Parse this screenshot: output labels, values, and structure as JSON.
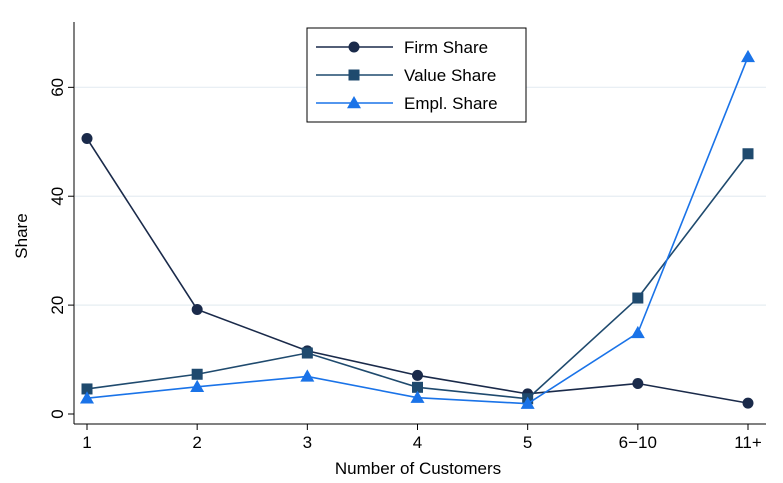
{
  "chart_data": {
    "type": "line",
    "xlabel": "Number of Customers",
    "ylabel": "Share",
    "categories": [
      "1",
      "2",
      "3",
      "4",
      "5",
      "6−10",
      "11+"
    ],
    "ylim": [
      0,
      72
    ],
    "yticks": [
      0,
      20,
      40,
      60
    ],
    "grid": "horizontal",
    "legend_position": "top-center",
    "series": [
      {
        "name": "Firm Share",
        "marker": "circle",
        "color": "#1a2a4a",
        "values": [
          50.6,
          19.2,
          11.6,
          7.1,
          3.7,
          5.6,
          2.0
        ]
      },
      {
        "name": "Value Share",
        "marker": "square",
        "color": "#1f4a6e",
        "values": [
          4.6,
          7.3,
          11.2,
          4.9,
          2.8,
          21.3,
          47.8
        ]
      },
      {
        "name": "Empl. Share",
        "marker": "triangle",
        "color": "#1a73e8",
        "values": [
          2.9,
          5.0,
          6.9,
          3.0,
          1.9,
          14.9,
          65.6
        ]
      }
    ]
  }
}
